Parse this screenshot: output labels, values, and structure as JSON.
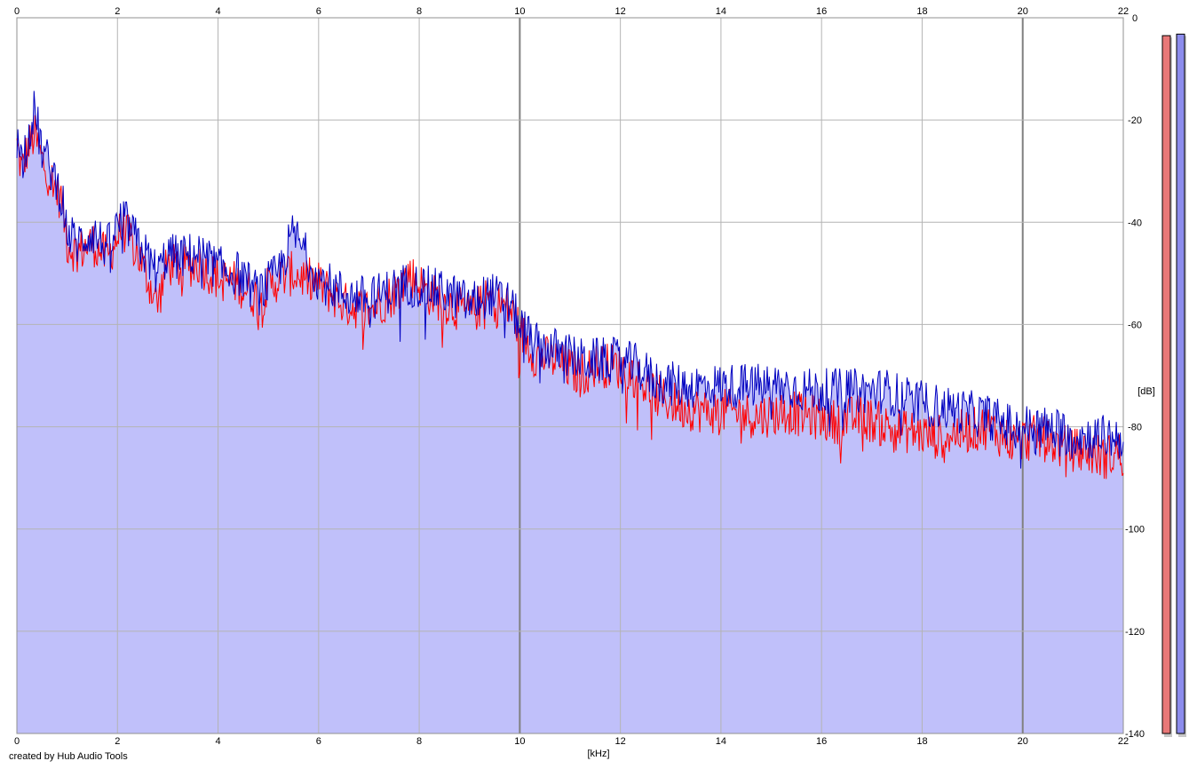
{
  "credit": "created by Hub Audio Tools",
  "chart_data": {
    "type": "area",
    "title": "",
    "xlabel": "[kHz]",
    "ylabel": "[dB]",
    "xlim": [
      0,
      22
    ],
    "ylim": [
      -140,
      0
    ],
    "x_ticks": [
      "0",
      "2",
      "4",
      "6",
      "8",
      "10",
      "12",
      "14",
      "16",
      "18",
      "20",
      "22"
    ],
    "y_ticks": [
      "0",
      "-20",
      "-40",
      "-60",
      "-80",
      "-100",
      "-120",
      "-140"
    ],
    "grid": true,
    "legend": "none",
    "colors": {
      "fill": "#c0c0fa",
      "series_red": "#ff0000",
      "series_blue": "#0000c0",
      "grid": "#b4b4b4",
      "grid_major": "#808080",
      "meter_red": "#e87878",
      "meter_blue": "#8c8cec"
    },
    "series": [
      {
        "x": [
          0,
          0.1,
          0.2,
          0.35,
          0.5,
          0.7,
          0.9,
          1.0,
          1.2,
          1.5,
          1.8,
          2.1,
          2.4,
          2.8,
          3.0,
          3.2,
          3.6,
          4.0,
          4.4,
          4.8,
          5.2,
          5.5,
          6.0,
          6.5,
          7.0,
          7.5,
          7.8,
          8.2,
          8.6,
          9.0,
          9.4,
          9.8,
          10.0,
          10.3,
          10.7,
          11.2,
          11.5,
          11.9,
          12.3,
          12.7,
          13.2,
          13.7,
          14.2,
          14.7,
          15.3,
          15.8,
          16.3,
          16.8,
          17.3,
          17.8,
          18.3,
          18.8,
          19.3,
          19.8,
          20.3,
          20.8,
          21.3,
          21.6,
          22.0
        ],
        "y": [
          -25,
          -30,
          -26,
          -23,
          -28,
          -32,
          -36,
          -44,
          -46,
          -44,
          -47,
          -41,
          -46,
          -56,
          -48,
          -49,
          -48,
          -51,
          -52,
          -55,
          -51,
          -50,
          -52,
          -56,
          -57,
          -54,
          -50,
          -54,
          -56,
          -58,
          -55,
          -57,
          -61,
          -66,
          -67,
          -70,
          -68,
          -68,
          -70,
          -74,
          -76,
          -77,
          -77,
          -78,
          -77,
          -78,
          -79,
          -78,
          -80,
          -81,
          -82,
          -81,
          -80,
          -83,
          -82,
          -84,
          -85,
          -86,
          -85
        ]
      },
      {
        "x": [
          0,
          0.1,
          0.2,
          0.35,
          0.5,
          0.7,
          0.9,
          1.0,
          1.2,
          1.5,
          1.8,
          2.1,
          2.4,
          2.8,
          3.0,
          3.2,
          3.6,
          4.0,
          4.4,
          4.8,
          5.2,
          5.5,
          6.0,
          6.5,
          7.0,
          7.5,
          7.8,
          8.2,
          8.6,
          9.0,
          9.4,
          9.8,
          10.0,
          10.3,
          10.7,
          11.2,
          11.5,
          11.9,
          12.3,
          12.7,
          13.2,
          13.7,
          14.2,
          14.7,
          15.3,
          15.8,
          16.3,
          16.8,
          17.3,
          17.8,
          18.3,
          18.8,
          19.3,
          19.8,
          20.3,
          20.8,
          21.3,
          21.6,
          22.0
        ],
        "y": [
          -24,
          -28,
          -24,
          -18,
          -26,
          -30,
          -35,
          -42,
          -44,
          -42,
          -45,
          -39,
          -44,
          -50,
          -46,
          -47,
          -46,
          -49,
          -50,
          -54,
          -50,
          -42,
          -51,
          -54,
          -55,
          -53,
          -52,
          -53,
          -54,
          -56,
          -54,
          -56,
          -60,
          -64,
          -65,
          -67,
          -67,
          -67,
          -68,
          -71,
          -72,
          -72,
          -72,
          -72,
          -72,
          -73,
          -73,
          -73,
          -73,
          -75,
          -76,
          -77,
          -78,
          -80,
          -80,
          -81,
          -82,
          -82,
          -82
        ]
      }
    ],
    "meters": [
      {
        "channel": "left",
        "level_db": -3.5
      },
      {
        "channel": "right",
        "level_db": -3.2
      }
    ]
  }
}
